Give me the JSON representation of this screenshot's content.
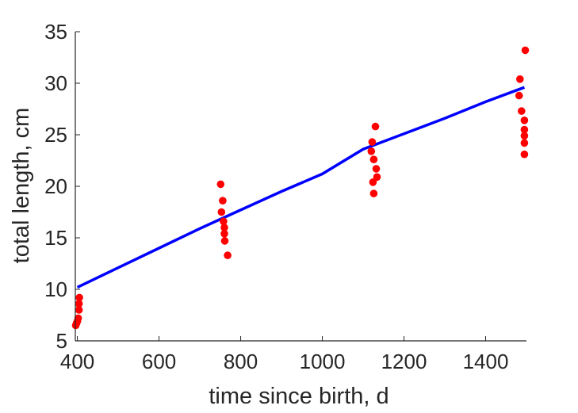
{
  "chart_data": {
    "type": "scatter",
    "xlabel": "time since birth, d",
    "ylabel": "total length, cm",
    "xlim": [
      395,
      1500
    ],
    "ylim": [
      5,
      35
    ],
    "xticks": [
      400,
      600,
      800,
      1000,
      1200,
      1400
    ],
    "yticks": [
      5,
      10,
      15,
      20,
      25,
      30,
      35
    ],
    "grid": false,
    "series": [
      {
        "kind": "points",
        "color": "#ff0000",
        "points": [
          [
            396,
            6.5
          ],
          [
            398,
            6.7
          ],
          [
            400,
            6.9
          ],
          [
            402,
            7.2
          ],
          [
            404,
            8.0
          ],
          [
            404,
            8.6
          ],
          [
            405,
            9.2
          ],
          [
            751,
            20.2
          ],
          [
            753,
            17.5
          ],
          [
            756,
            18.6
          ],
          [
            758,
            16.6
          ],
          [
            760,
            16.0
          ],
          [
            760,
            15.4
          ],
          [
            761,
            14.7
          ],
          [
            768,
            13.3
          ],
          [
            1120,
            23.4
          ],
          [
            1122,
            24.3
          ],
          [
            1126,
            22.6
          ],
          [
            1124,
            20.4
          ],
          [
            1126,
            19.3
          ],
          [
            1130,
            25.8
          ],
          [
            1132,
            21.7
          ],
          [
            1134,
            20.9
          ],
          [
            1484,
            30.4
          ],
          [
            1482,
            28.8
          ],
          [
            1488,
            27.3
          ],
          [
            1495,
            26.4
          ],
          [
            1495,
            25.5
          ],
          [
            1495,
            24.9
          ],
          [
            1495,
            24.2
          ],
          [
            1495,
            23.1
          ],
          [
            1497,
            33.2
          ]
        ]
      },
      {
        "kind": "line",
        "color": "#0000ff",
        "points": [
          [
            400,
            10.2
          ],
          [
            500,
            12.1
          ],
          [
            600,
            14.0
          ],
          [
            700,
            15.9
          ],
          [
            800,
            17.7
          ],
          [
            900,
            19.5
          ],
          [
            1000,
            21.2
          ],
          [
            1100,
            23.6
          ],
          [
            1200,
            25.1
          ],
          [
            1300,
            26.6
          ],
          [
            1400,
            28.2
          ],
          [
            1495,
            29.6
          ]
        ]
      }
    ]
  }
}
